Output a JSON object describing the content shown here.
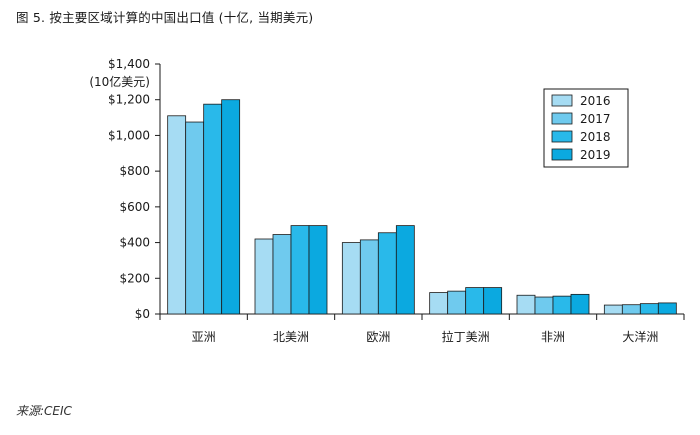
{
  "figure": {
    "title": "图 5. 按主要区域计算的中国出口值 (十亿, 当期美元)",
    "source": "来源:CEIC"
  },
  "chart_data": {
    "type": "bar",
    "title": "图 5. 按主要区域计算的中国出口值 (十亿, 当期美元)",
    "ylabel": "(10亿美元)",
    "xlabel": "",
    "categories": [
      "亚洲",
      "北美洲",
      "欧洲",
      "拉丁美洲",
      "非洲",
      "大洋洲"
    ],
    "ylim": [
      0,
      1400
    ],
    "yticks": [
      0,
      200,
      400,
      600,
      800,
      1000,
      1200,
      1400
    ],
    "ytick_labels": [
      "$0",
      "$200",
      "$400",
      "$600",
      "$800",
      "$1,000",
      "$1,200",
      "$1,400"
    ],
    "grid": false,
    "legend_position": "top-right",
    "series": [
      {
        "name": "2016",
        "color": "#a6dcf3",
        "values": [
          1110,
          420,
          400,
          120,
          105,
          50
        ]
      },
      {
        "name": "2017",
        "color": "#6fcaee",
        "values": [
          1075,
          445,
          415,
          128,
          95,
          52
        ]
      },
      {
        "name": "2018",
        "color": "#29b9ea",
        "values": [
          1175,
          495,
          455,
          148,
          100,
          58
        ]
      },
      {
        "name": "2019",
        "color": "#0ba9e0",
        "values": [
          1200,
          495,
          495,
          148,
          110,
          62
        ]
      }
    ],
    "bar_edge_color": "#1a1a1a"
  }
}
